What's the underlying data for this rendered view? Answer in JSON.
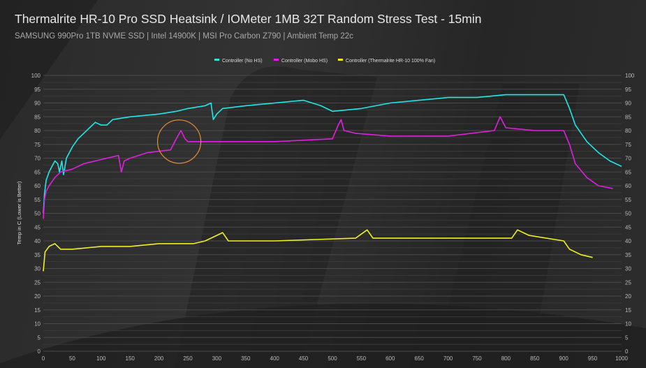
{
  "title": "Thermalrite HR-10 Pro SSD Heatsink / IOMeter 1MB 32T Random Stress Test - 15min",
  "subtitle": "SAMSUNG 990Pro 1TB NVME SSD | Intel 14900K | MSI Pro Carbon Z790 | Ambient Temp 22c",
  "chart_data": {
    "type": "line",
    "title": "Thermalrite HR-10 Pro SSD Heatsink / IOMeter 1MB 32T Random Stress Test - 15min",
    "xlabel": "",
    "ylabel": "Temp in C (Lower is Better)",
    "xlim": [
      0,
      1000
    ],
    "ylim": [
      0,
      100
    ],
    "xticks": [
      0,
      50,
      100,
      150,
      200,
      250,
      300,
      350,
      400,
      450,
      500,
      550,
      600,
      650,
      700,
      750,
      800,
      850,
      900,
      950,
      1000
    ],
    "yticks": [
      0,
      5,
      10,
      15,
      20,
      25,
      30,
      35,
      40,
      45,
      50,
      55,
      60,
      65,
      70,
      75,
      80,
      85,
      90,
      95,
      100
    ],
    "grid": true,
    "legend": "top",
    "annotation": "circle around Mobo HS spike near x=235",
    "series": [
      {
        "name": "Controller (No HS)",
        "color": "#1ee8e8",
        "points": [
          [
            0,
            50
          ],
          [
            2,
            57
          ],
          [
            5,
            62
          ],
          [
            10,
            65
          ],
          [
            15,
            67
          ],
          [
            20,
            69
          ],
          [
            25,
            68
          ],
          [
            28,
            65
          ],
          [
            32,
            69
          ],
          [
            35,
            64
          ],
          [
            40,
            70
          ],
          [
            50,
            74
          ],
          [
            60,
            77
          ],
          [
            70,
            79
          ],
          [
            80,
            81
          ],
          [
            90,
            83
          ],
          [
            100,
            82
          ],
          [
            110,
            82
          ],
          [
            120,
            84
          ],
          [
            150,
            85
          ],
          [
            200,
            86
          ],
          [
            230,
            87
          ],
          [
            250,
            88
          ],
          [
            280,
            89
          ],
          [
            290,
            90
          ],
          [
            294,
            84
          ],
          [
            300,
            86
          ],
          [
            310,
            88
          ],
          [
            350,
            89
          ],
          [
            400,
            90
          ],
          [
            450,
            91
          ],
          [
            480,
            89
          ],
          [
            500,
            87
          ],
          [
            550,
            88
          ],
          [
            600,
            90
          ],
          [
            650,
            91
          ],
          [
            700,
            92
          ],
          [
            750,
            92
          ],
          [
            800,
            93
          ],
          [
            900,
            93
          ],
          [
            910,
            88
          ],
          [
            920,
            82
          ],
          [
            940,
            76
          ],
          [
            960,
            72
          ],
          [
            980,
            69
          ],
          [
            1000,
            67
          ]
        ]
      },
      {
        "name": "Controller (Mobo HS)",
        "color": "#e020e0",
        "points": [
          [
            0,
            48
          ],
          [
            2,
            55
          ],
          [
            5,
            58
          ],
          [
            10,
            60
          ],
          [
            20,
            63
          ],
          [
            30,
            65
          ],
          [
            50,
            66
          ],
          [
            70,
            68
          ],
          [
            90,
            69
          ],
          [
            110,
            70
          ],
          [
            130,
            71
          ],
          [
            135,
            65
          ],
          [
            140,
            69
          ],
          [
            150,
            70
          ],
          [
            180,
            72
          ],
          [
            220,
            73
          ],
          [
            230,
            77
          ],
          [
            238,
            80
          ],
          [
            245,
            77
          ],
          [
            250,
            76
          ],
          [
            300,
            76
          ],
          [
            400,
            76
          ],
          [
            500,
            77
          ],
          [
            510,
            82
          ],
          [
            515,
            84
          ],
          [
            520,
            80
          ],
          [
            540,
            79
          ],
          [
            600,
            78
          ],
          [
            700,
            78
          ],
          [
            780,
            80
          ],
          [
            790,
            85
          ],
          [
            800,
            81
          ],
          [
            850,
            80
          ],
          [
            900,
            80
          ],
          [
            910,
            75
          ],
          [
            920,
            68
          ],
          [
            940,
            63
          ],
          [
            960,
            60
          ],
          [
            985,
            59
          ]
        ]
      },
      {
        "name": "Controller (Thermalrite HR-10 100% Fan)",
        "color": "#f0f020",
        "points": [
          [
            0,
            29
          ],
          [
            3,
            36
          ],
          [
            10,
            38
          ],
          [
            20,
            39
          ],
          [
            30,
            37
          ],
          [
            50,
            37
          ],
          [
            100,
            38
          ],
          [
            150,
            38
          ],
          [
            200,
            39
          ],
          [
            260,
            39
          ],
          [
            280,
            40
          ],
          [
            300,
            42
          ],
          [
            310,
            43
          ],
          [
            320,
            40
          ],
          [
            400,
            40
          ],
          [
            540,
            41
          ],
          [
            560,
            44
          ],
          [
            570,
            41
          ],
          [
            600,
            41
          ],
          [
            700,
            41
          ],
          [
            810,
            41
          ],
          [
            820,
            44
          ],
          [
            840,
            42
          ],
          [
            900,
            40
          ],
          [
            910,
            37
          ],
          [
            930,
            35
          ],
          [
            950,
            34
          ]
        ]
      }
    ]
  }
}
